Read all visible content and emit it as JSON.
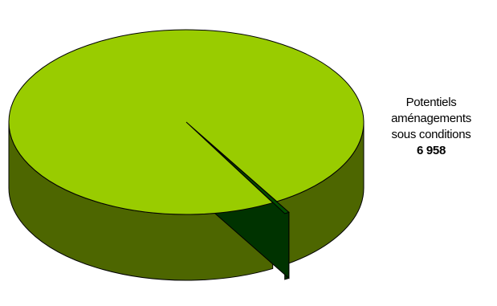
{
  "chart_data": {
    "type": "pie",
    "style": "3d",
    "slices": [
      {
        "value": 6958,
        "label_lines": [
          "Potentiels",
          "aménagements",
          "sous conditions"
        ],
        "value_label": "6 958",
        "color": "#99CC00",
        "side_color": "#4D6600"
      },
      {
        "value": 30,
        "exploded": true,
        "color": "#004D00",
        "side_color": "#003300"
      }
    ]
  }
}
